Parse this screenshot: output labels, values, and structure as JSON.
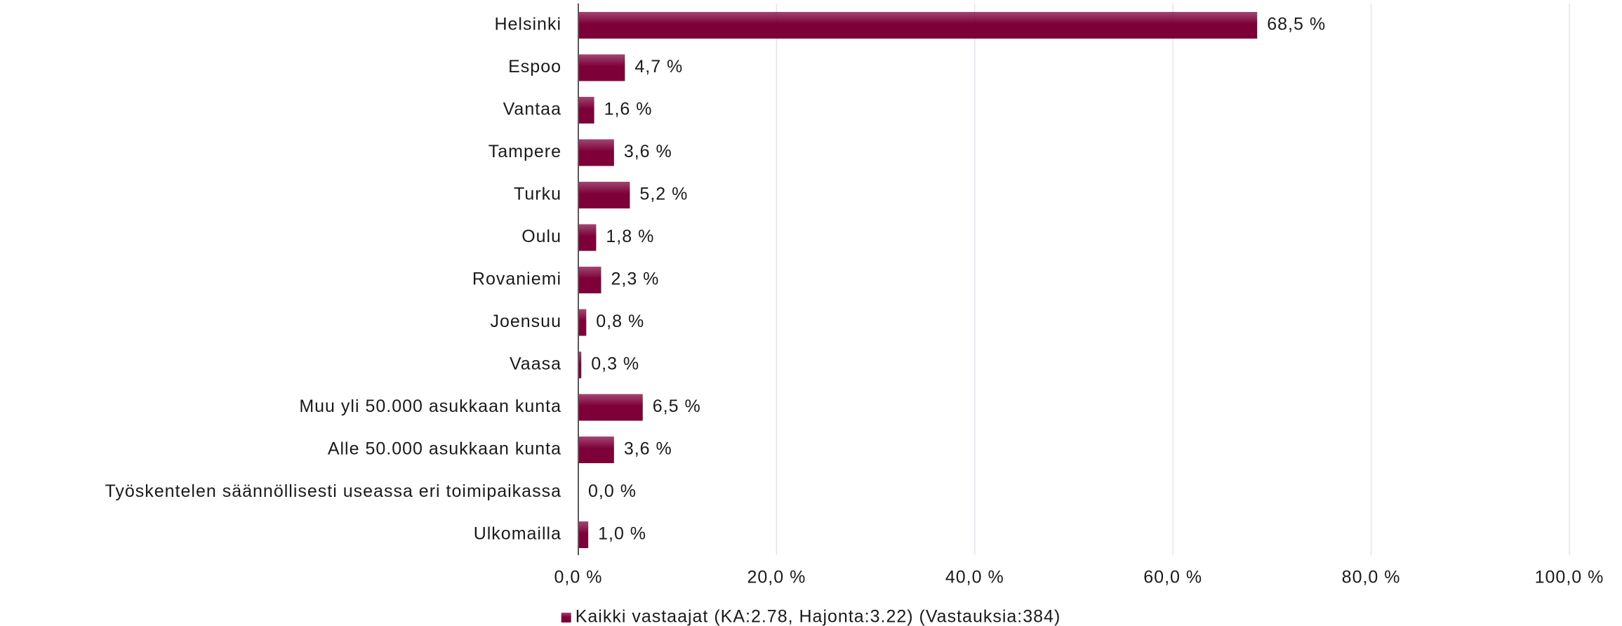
{
  "chart_data": {
    "type": "barh",
    "categories": [
      "Helsinki",
      "Espoo",
      "Vantaa",
      "Tampere",
      "Turku",
      "Oulu",
      "Rovaniemi",
      "Joensuu",
      "Vaasa",
      "Muu yli 50.000 asukkaan kunta",
      "Alle 50.000 asukkaan kunta",
      "Työskentelen säännöllisesti useassa eri toimipaikassa",
      "Ulkomailla"
    ],
    "series": [
      {
        "name": "Kaikki vastaajat (KA:2.78, Hajonta:3.22) (Vastauksia:384)",
        "color": "#7d0038",
        "values": [
          68.5,
          4.7,
          1.6,
          3.6,
          5.2,
          1.8,
          2.3,
          0.8,
          0.3,
          6.5,
          3.6,
          0.0,
          1.0
        ],
        "value_labels": [
          "68,5 %",
          "4,7 %",
          "1,6 %",
          "3,6 %",
          "5,2 %",
          "1,8 %",
          "2,3 %",
          "0,8 %",
          "0,3 %",
          "6,5 %",
          "3,6 %",
          "0,0 %",
          "1,0 %"
        ]
      }
    ],
    "xlim": [
      0,
      100
    ],
    "xticks": [
      {
        "value": 0,
        "label": "0,0 %"
      },
      {
        "value": 20,
        "label": "20,0 %"
      },
      {
        "value": 40,
        "label": "40,0 %"
      },
      {
        "value": 60,
        "label": "60,0 %"
      },
      {
        "value": 80,
        "label": "80,0 %"
      },
      {
        "value": 100,
        "label": "100,0 %"
      }
    ],
    "grid": true,
    "legend": "bottom"
  }
}
